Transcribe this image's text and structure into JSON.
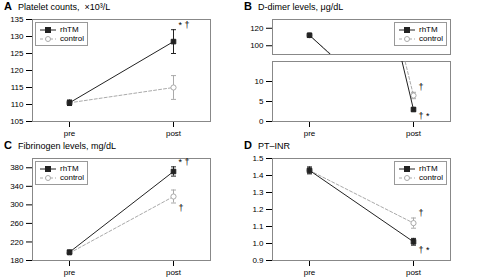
{
  "chart_data": [
    {
      "type": "line",
      "panel_label": "A",
      "title": "Platelet counts,  ×10³/L",
      "categories": [
        "pre",
        "post"
      ],
      "series": [
        {
          "name": "control",
          "color": "#aaaaaa",
          "values": [
            110.5,
            115.0
          ],
          "errors": [
            0.8,
            3.5
          ],
          "marker": "hollow_circle",
          "line_style": "dashed"
        },
        {
          "name": "rhTM",
          "color": "#222222",
          "values": [
            110.5,
            128.5
          ],
          "errors": [
            0.8,
            3.5
          ],
          "marker": "square",
          "line_style": "solid"
        }
      ],
      "ylim": [
        105,
        135
      ],
      "yticks": [
        105,
        110,
        115,
        120,
        125,
        130,
        135
      ],
      "legend": "upper left",
      "annotations": [
        {
          "text": "* †",
          "series": "rhTM",
          "x": "post"
        }
      ]
    },
    {
      "type": "line",
      "panel_label": "B",
      "title": "D-dimer levels, μg/dL",
      "categories": [
        "pre",
        "post"
      ],
      "series": [
        {
          "name": "control",
          "color": "#aaaaaa",
          "values": [
            112.0,
            6.5
          ],
          "errors": [
            2.0,
            0.8
          ],
          "marker": "hollow_circle",
          "line_style": "dashed"
        },
        {
          "name": "rhTM",
          "color": "#222222",
          "values": [
            112.0,
            3.0
          ],
          "errors": [
            2.0,
            0.4
          ],
          "marker": "square",
          "line_style": "solid"
        }
      ],
      "ylim": [
        [
          0,
          15
        ],
        [
          90,
          130
        ]
      ],
      "yticks": [
        [
          0,
          5,
          10
        ],
        [
          100,
          120
        ]
      ],
      "legend": "upper right",
      "annotations": [
        {
          "text": "† *",
          "series": "rhTM",
          "x": "post"
        },
        {
          "text": "†",
          "series": "control",
          "x": "post"
        }
      ]
    },
    {
      "type": "line",
      "panel_label": "C",
      "title": "Fibrinogen levels, mg/dL",
      "categories": [
        "pre",
        "post"
      ],
      "series": [
        {
          "name": "control",
          "color": "#aaaaaa",
          "values": [
            196.0,
            318.0
          ],
          "errors": [
            4.0,
            14.0
          ],
          "marker": "hollow_circle",
          "line_style": "dashed"
        },
        {
          "name": "rhTM",
          "color": "#222222",
          "values": [
            198.0,
            372.0
          ],
          "errors": [
            4.0,
            10.0
          ],
          "marker": "square",
          "line_style": "solid"
        }
      ],
      "ylim": [
        180,
        400
      ],
      "yticks": [
        180,
        220,
        260,
        300,
        340,
        380
      ],
      "legend": "upper left",
      "annotations": [
        {
          "text": "* †",
          "series": "rhTM",
          "x": "post"
        },
        {
          "text": "†",
          "series": "control",
          "x": "post"
        }
      ]
    },
    {
      "type": "line",
      "panel_label": "D",
      "title": "PT–INR",
      "categories": [
        "pre",
        "post"
      ],
      "series": [
        {
          "name": "control",
          "color": "#aaaaaa",
          "values": [
            1.43,
            1.12
          ],
          "errors": [
            0.02,
            0.03
          ],
          "marker": "hollow_circle",
          "line_style": "dashed"
        },
        {
          "name": "rhTM",
          "color": "#222222",
          "values": [
            1.43,
            1.01
          ],
          "errors": [
            0.02,
            0.02
          ],
          "marker": "square",
          "line_style": "solid"
        }
      ],
      "ylim": [
        0.9,
        1.5
      ],
      "yticks": [
        0.9,
        {
          "value": 1.0,
          "label": "1.0"
        },
        1.1,
        1.2,
        1.3,
        1.4,
        1.5
      ],
      "legend": "upper right",
      "annotations": [
        {
          "text": "† *",
          "series": "rhTM",
          "x": "post"
        },
        {
          "text": "†",
          "series": "control",
          "x": "post"
        }
      ]
    }
  ]
}
